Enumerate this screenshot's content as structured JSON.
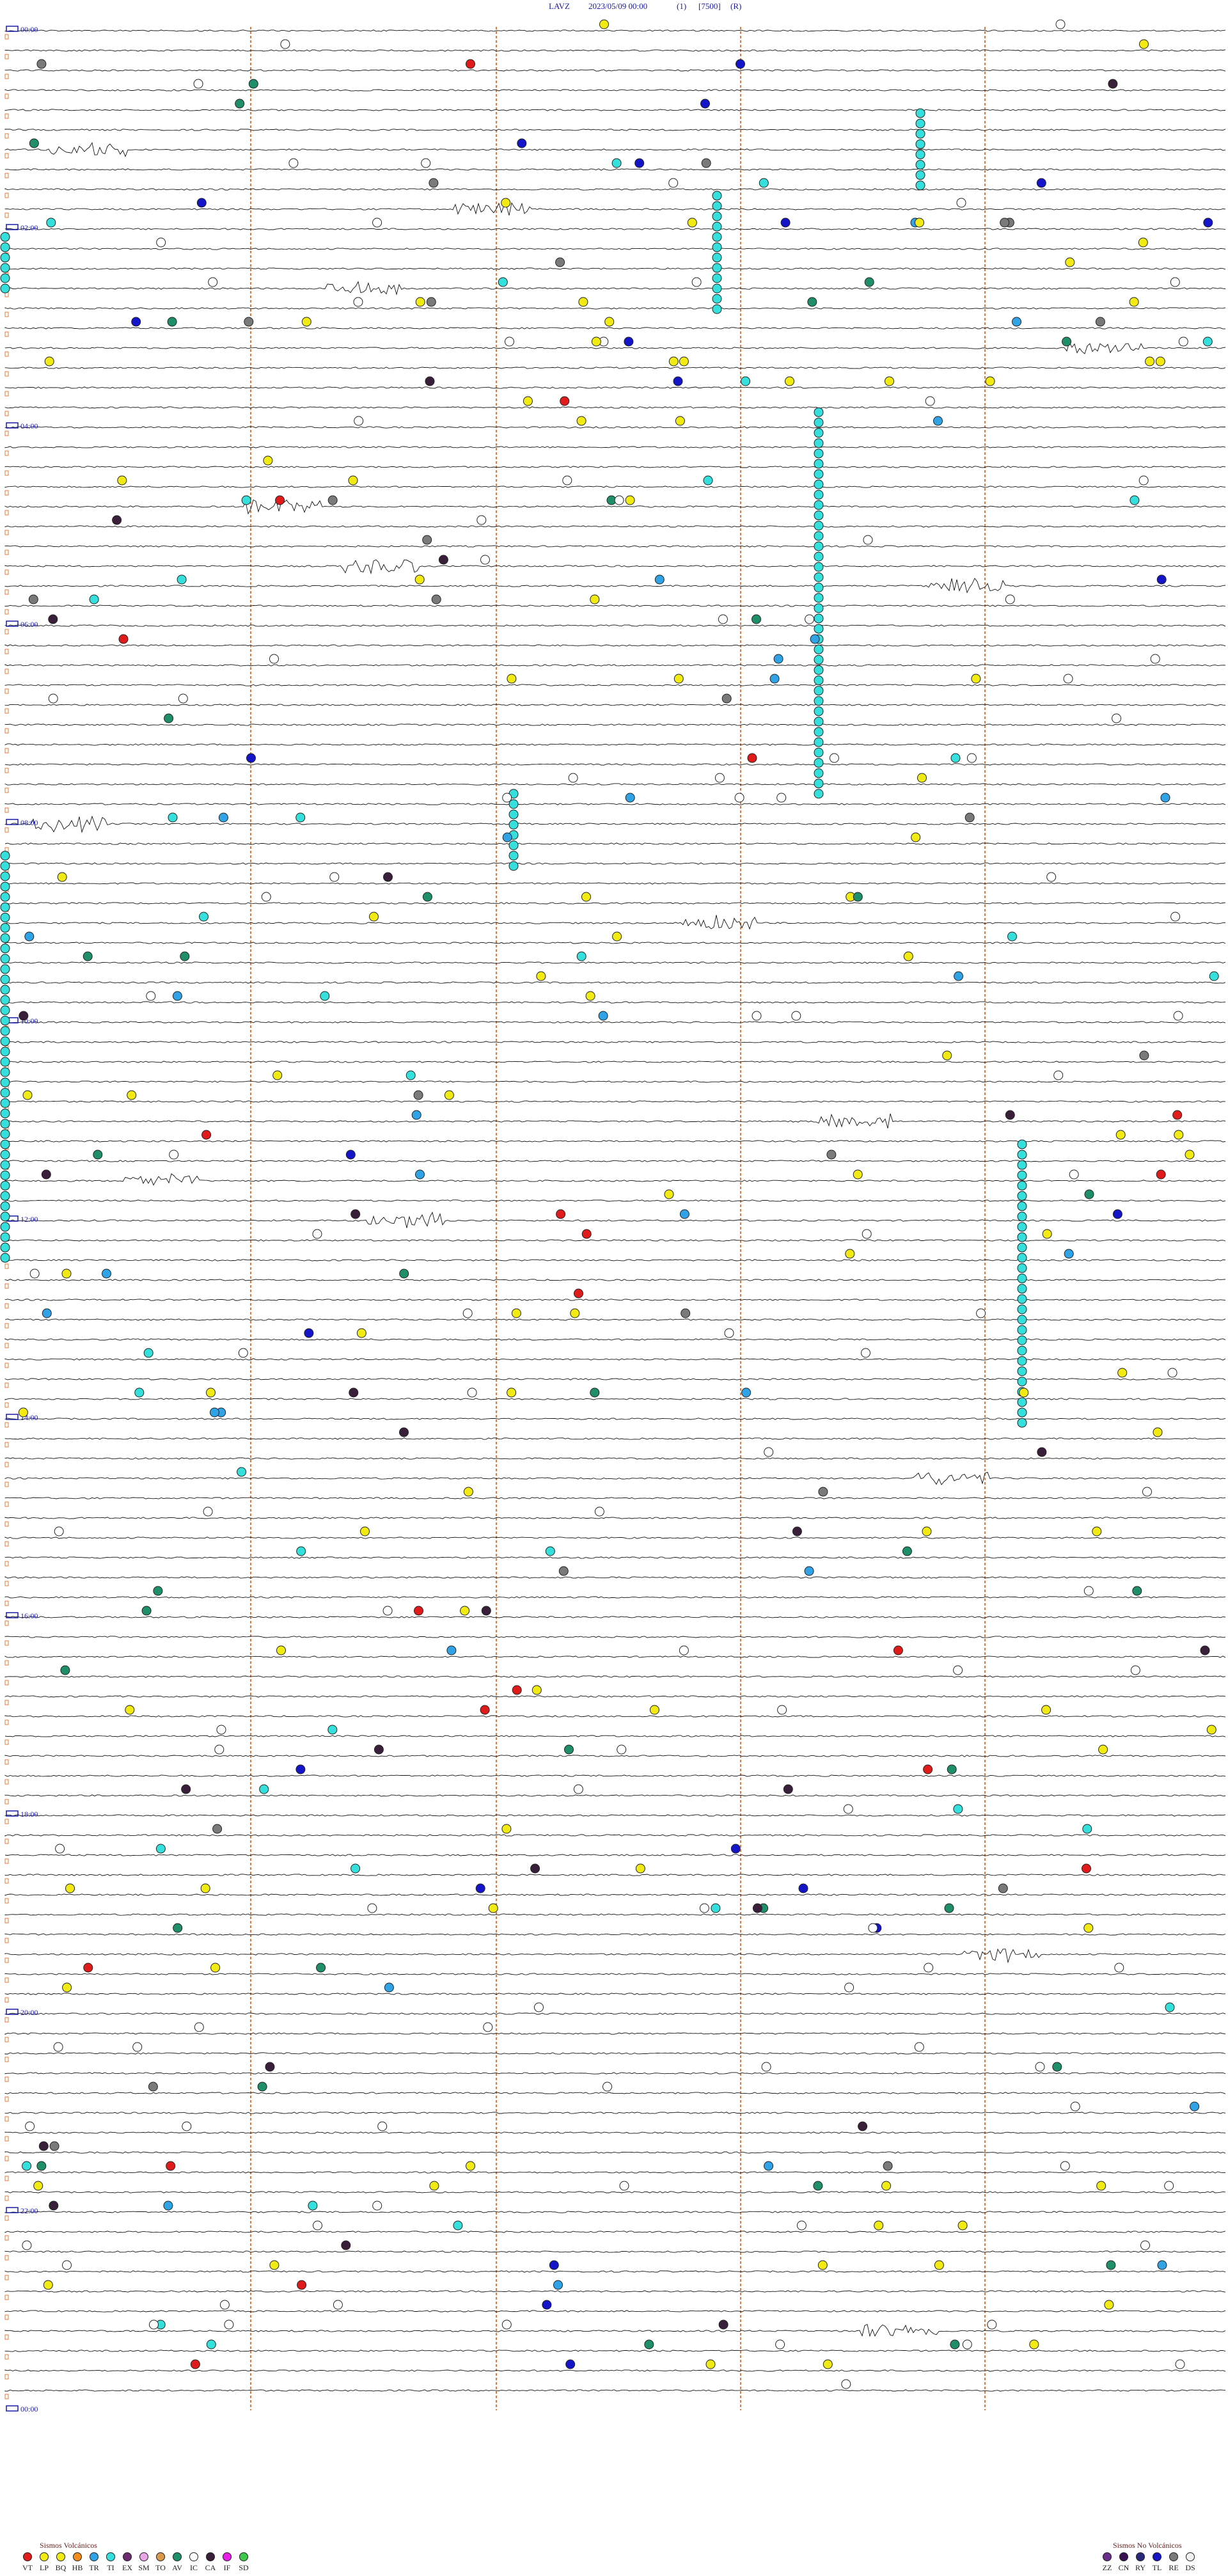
{
  "header": {
    "station": "LAVZ",
    "datetime": "2023/05/09 00:00",
    "field1": "(1)",
    "field2": "[7500]",
    "field3": "(R)"
  },
  "chart_data": {
    "type": "helicorder",
    "time_labels": [
      "00:00",
      "02:00",
      "04:00",
      "06:00",
      "08:00",
      "10:00",
      "12:00",
      "14:00",
      "16:00",
      "18:00",
      "20:00",
      "22:00",
      "00:00"
    ],
    "rows_per_label": 10,
    "colors": {
      "trace": "#111111",
      "grid": "#e07a3c",
      "label": "#1a1aa8",
      "row_marker": "#e07a3c"
    },
    "event_colors": {
      "VT": "#e01b1b",
      "LP": "#f2ea13",
      "BQ": "#f2ea13",
      "HB": "#f08c1e",
      "TR": "#2fa3e6",
      "TI": "#35e0dc",
      "EX": "#6b2c6e",
      "SM": "#e8a8e8",
      "TO": "#d89a4a",
      "AV": "#1f8f6a",
      "IC": "#ffffff",
      "CA": "#3a1f3a",
      "IF": "#e81ee8",
      "SD": "#3cc84a",
      "ZZ": "#6a2d8c",
      "CN": "#3a1050",
      "RY": "#2a2a7a",
      "TL": "#1414c8",
      "RE": "#7a7a7a",
      "DS": "#f0f0f0"
    },
    "tremor_bands": [
      {
        "type": "TI",
        "time": "01:30",
        "duration_rows": 8
      },
      {
        "type": "TI",
        "time": "03:10",
        "duration_rows": 12
      },
      {
        "type": "TI",
        "time": "04:00",
        "duration_rows": 6
      },
      {
        "type": "TI",
        "time": "07:20",
        "duration_rows": 38
      },
      {
        "type": "TI",
        "time": "14:50",
        "duration_rows": 8
      },
      {
        "type": "TI",
        "time": "16:00",
        "duration_rows": 40
      },
      {
        "type": "TI",
        "time": "21:40",
        "duration_rows": 28
      }
    ]
  },
  "legend": {
    "volcanic_title": "Sismos Volcánicos",
    "nonvolcanic_title": "Sismos No Volcánicos",
    "volcanic": [
      {
        "code": "VT",
        "color": "#e01b1b"
      },
      {
        "code": "LP",
        "color": "#f2ea13"
      },
      {
        "code": "BQ",
        "color": "#f2ea13"
      },
      {
        "code": "HB",
        "color": "#f08c1e"
      },
      {
        "code": "TR",
        "color": "#2fa3e6"
      },
      {
        "code": "TI",
        "color": "#35e0dc"
      },
      {
        "code": "EX",
        "color": "#6b2c6e"
      },
      {
        "code": "SM",
        "color": "#e8a8e8"
      },
      {
        "code": "TO",
        "color": "#d89a4a"
      },
      {
        "code": "AV",
        "color": "#1f8f6a"
      },
      {
        "code": "IC",
        "color": "#ffffff"
      },
      {
        "code": "CA",
        "color": "#3a1f3a"
      },
      {
        "code": "IF",
        "color": "#e81ee8"
      },
      {
        "code": "SD",
        "color": "#3cc84a"
      }
    ],
    "nonvolcanic": [
      {
        "code": "ZZ",
        "color": "#6a2d8c"
      },
      {
        "code": "CN",
        "color": "#3a1050"
      },
      {
        "code": "RY",
        "color": "#2a2a7a"
      },
      {
        "code": "TL",
        "color": "#1414c8"
      },
      {
        "code": "RE",
        "color": "#7a7a7a"
      },
      {
        "code": "DS",
        "color": "#f0f0f0"
      }
    ]
  }
}
